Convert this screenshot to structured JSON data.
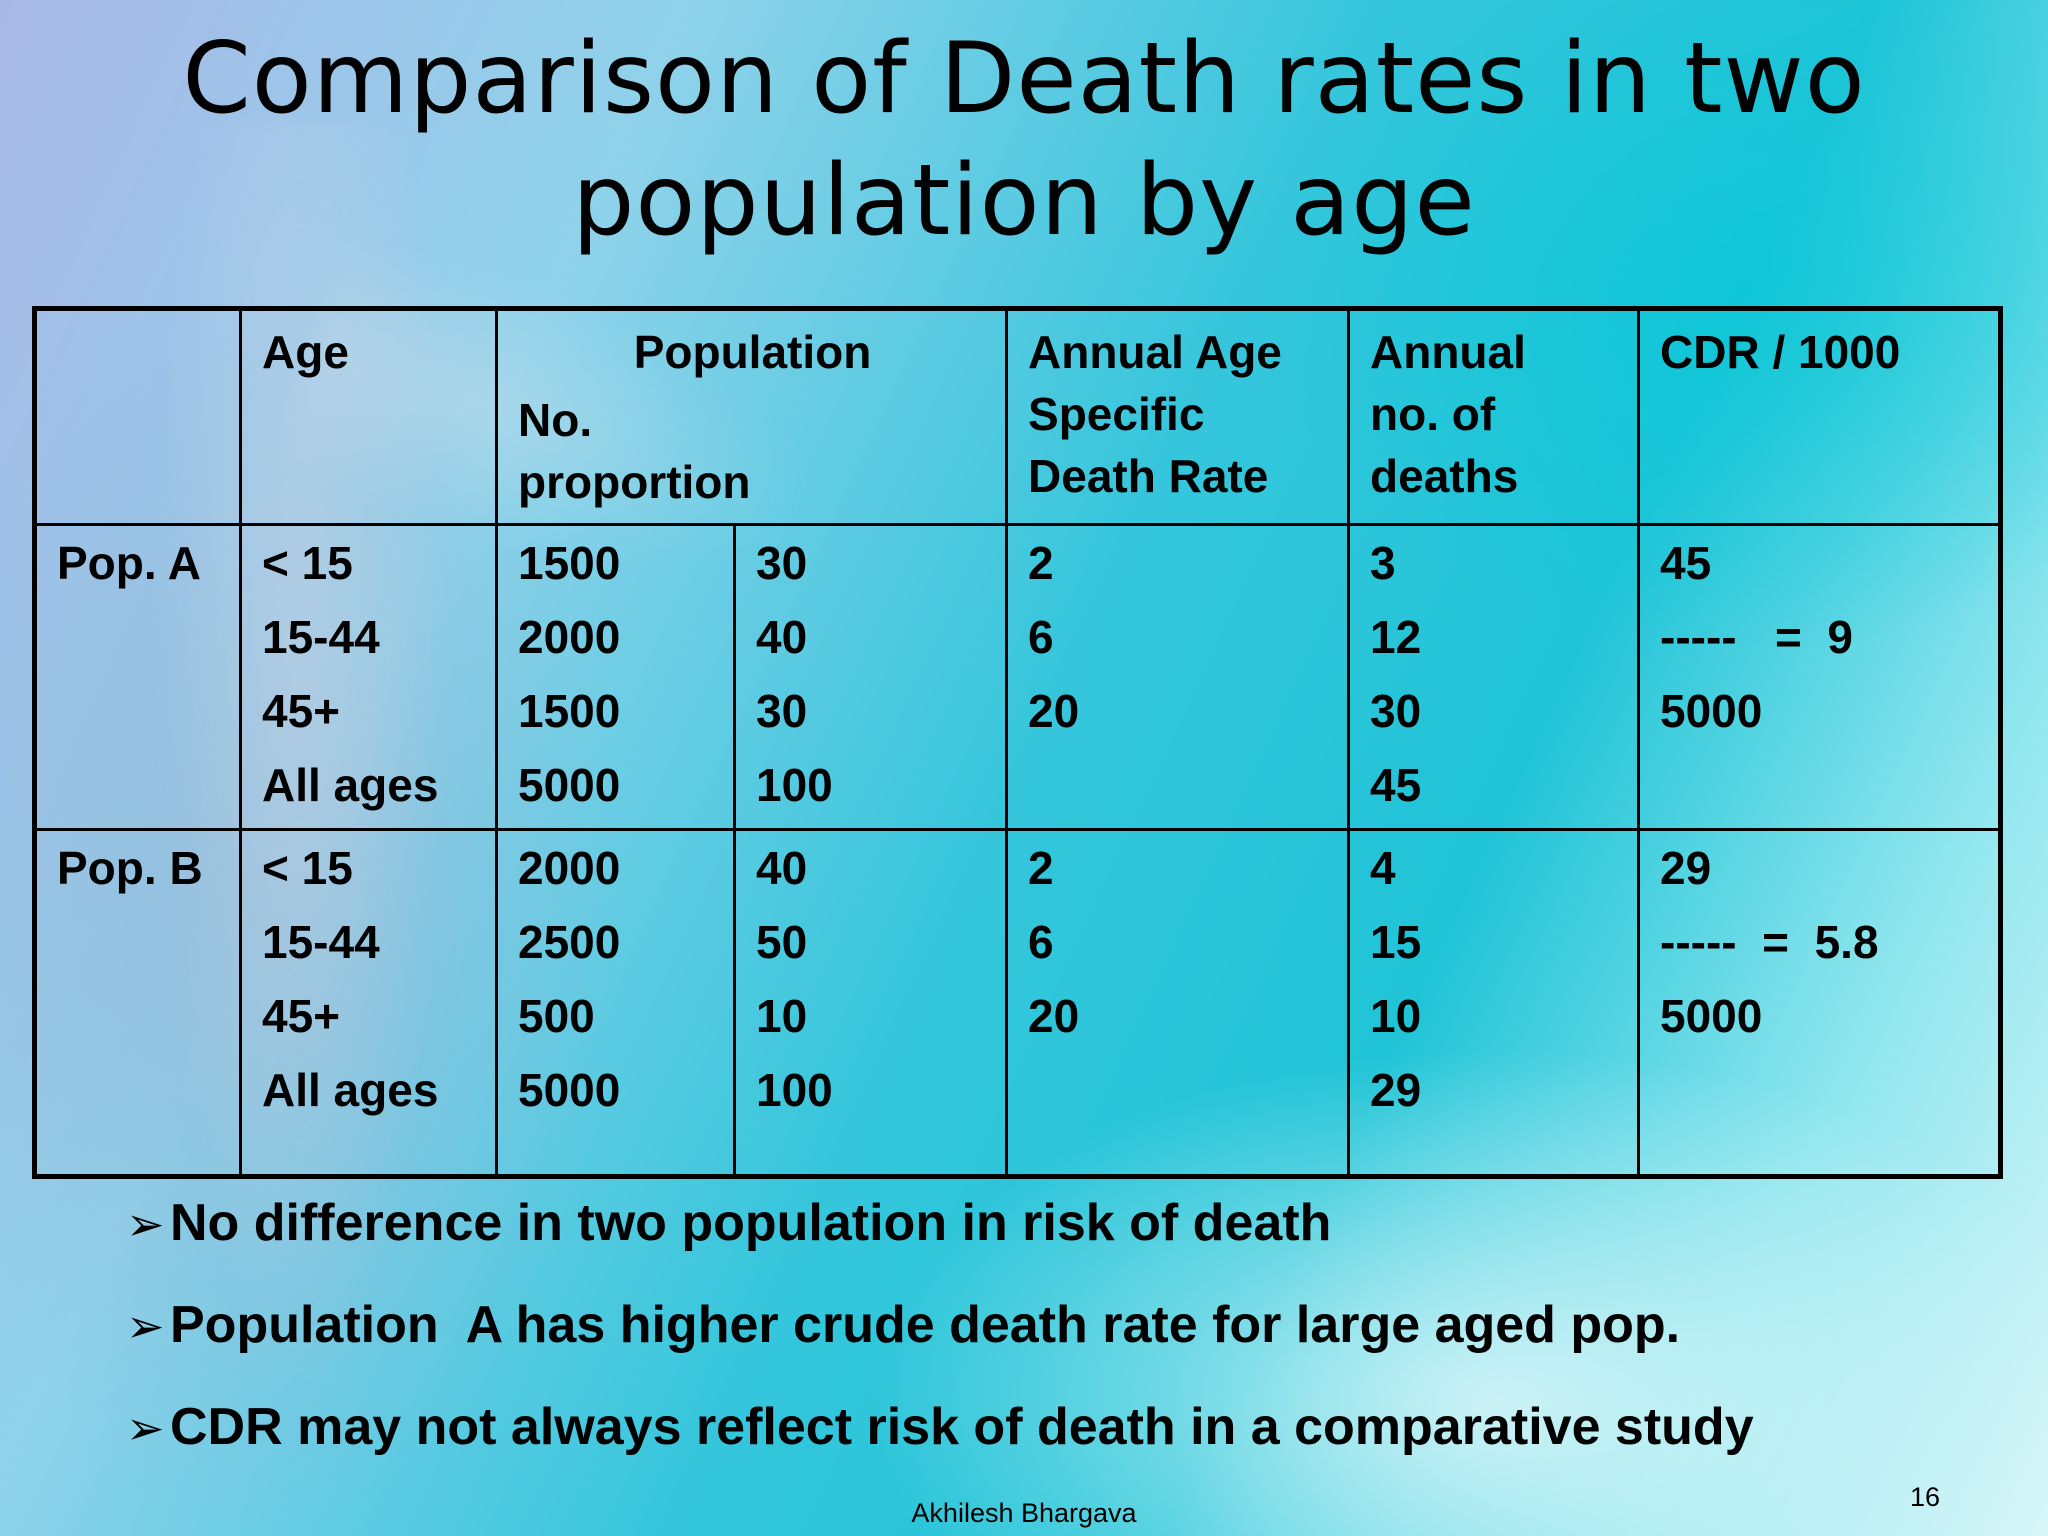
{
  "slide": {
    "title_line1": "Comparison of Death rates in two",
    "title_line2": "population by age",
    "author": "Akhilesh Bhargava",
    "page_number": "16"
  },
  "table": {
    "headers": {
      "group": "",
      "age": "Age",
      "population": "Population",
      "population_sub": [
        "No.",
        "proportion"
      ],
      "asdr": [
        "Annual Age",
        "Specific",
        "Death Rate"
      ],
      "deaths": [
        "Annual",
        "no. of",
        "deaths"
      ],
      "cdr": "CDR / 1000"
    },
    "groups": [
      {
        "label": "Pop. A",
        "ages": [
          "< 15",
          "15-44",
          "45+",
          "All ages"
        ],
        "numbers": [
          "1500",
          "2000",
          "1500",
          "5000"
        ],
        "proportions": [
          "30",
          "40",
          "30",
          "100"
        ],
        "asdr": [
          "2",
          "6",
          "20",
          ""
        ],
        "deaths": [
          "3",
          "12",
          "30",
          "45"
        ],
        "cdr": [
          "45",
          "-----   =  9",
          "5000"
        ]
      },
      {
        "label": "Pop. B",
        "ages": [
          "< 15",
          "15-44",
          "45+",
          "All ages"
        ],
        "numbers": [
          "2000",
          "2500",
          "500",
          "5000"
        ],
        "proportions": [
          "40",
          "50",
          "10",
          "100"
        ],
        "asdr": [
          "2",
          "6",
          "20",
          ""
        ],
        "deaths": [
          "4",
          "15",
          "10",
          "29"
        ],
        "cdr": [
          "29",
          "-----  =  5.8",
          "5000"
        ]
      }
    ]
  },
  "bullets": {
    "arrow_icon": "arrow-bullet-icon",
    "items": [
      "No difference in two population in risk of death",
      "Population  A has higher crude death rate for large aged pop.",
      "CDR may not always reflect risk of death in a comparative study"
    ]
  }
}
